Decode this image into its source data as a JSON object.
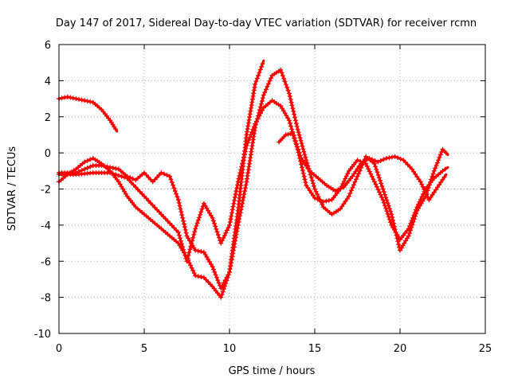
{
  "chart_data": {
    "type": "line",
    "title": "Day 147 of 2017, Sidereal Day-to-day VTEC variation (SDTVAR) for receiver rcmn",
    "xlabel": "GPS time / hours",
    "ylabel": "SDTVAR / TECUs",
    "xlim": [
      0,
      25
    ],
    "ylim": [
      -10,
      6
    ],
    "xticks": [
      "0",
      "5",
      "10",
      "15",
      "20",
      "25"
    ],
    "yticks": [
      "-10",
      "-8",
      "-6",
      "-4",
      "-2",
      "0",
      "2",
      "4",
      "6"
    ],
    "grid": true,
    "marker": "+",
    "color": "#ff0000",
    "series": [
      {
        "x": [
          0,
          0.5,
          1,
          1.5,
          2,
          2.5,
          3,
          3.4
        ],
        "y": [
          3.0,
          3.1,
          3.0,
          2.9,
          2.8,
          2.4,
          1.8,
          1.2
        ]
      },
      {
        "x": [
          0,
          0.5,
          1,
          1.5,
          2,
          2.5,
          3,
          3.5,
          4,
          4.5,
          5,
          5.5,
          6,
          6.5,
          7,
          7.5,
          8,
          8.5,
          9,
          9.5,
          10,
          10.5,
          11,
          11.5,
          12
        ],
        "y": [
          -1.6,
          -1.2,
          -0.9,
          -0.5,
          -0.3,
          -0.6,
          -1.0,
          -1.6,
          -2.4,
          -3.0,
          -3.4,
          -3.8,
          -4.2,
          -4.6,
          -5.0,
          -5.8,
          -6.8,
          -6.9,
          -7.4,
          -8.0,
          -6.6,
          -3.2,
          1.0,
          3.8,
          5.1
        ]
      },
      {
        "x": [
          0,
          0.5,
          1,
          1.5,
          2,
          2.5,
          3,
          3.5,
          4,
          4.5,
          5,
          5.5,
          6,
          6.5,
          7,
          7.5,
          8,
          8.5,
          9,
          9.5,
          10,
          10.5,
          11,
          11.5,
          12,
          12.5,
          13,
          13.5,
          14,
          14.5,
          15,
          15.5,
          16,
          16.5,
          17,
          17.5,
          18,
          18.5,
          19,
          19.5,
          20,
          20.5,
          21,
          21.5,
          22,
          22.5,
          22.8
        ],
        "y": [
          -1.1,
          -1.1,
          -1.1,
          -0.9,
          -0.7,
          -0.7,
          -0.8,
          -0.9,
          -1.3,
          -1.5,
          -1.1,
          -1.6,
          -1.1,
          -1.3,
          -2.6,
          -4.6,
          -5.4,
          -5.5,
          -6.3,
          -7.5,
          -6.6,
          -4.0,
          -1.6,
          1.4,
          3.2,
          4.3,
          4.6,
          3.3,
          1.3,
          -0.4,
          -2.0,
          -3.0,
          -3.4,
          -3.1,
          -2.4,
          -1.3,
          -0.2,
          -0.6,
          -2.0,
          -3.4,
          -5.4,
          -4.6,
          -3.2,
          -2.4,
          -1.0,
          0.2,
          -0.1
        ]
      },
      {
        "x": [
          0,
          1,
          2,
          3,
          4,
          5,
          6,
          7,
          7.5,
          8,
          8.5,
          9,
          9.5,
          10,
          10.5,
          11,
          11.5,
          12,
          12.5,
          13,
          13.5,
          14,
          14.5,
          15,
          15.5,
          16,
          16.5,
          17,
          17.5,
          18,
          18.5,
          19,
          19.5,
          20,
          20.5,
          21,
          21.5,
          22,
          22.5,
          22.8
        ],
        "y": [
          -1.2,
          -1.2,
          -1.1,
          -1.1,
          -1.4,
          -2.4,
          -3.4,
          -4.4,
          -6.0,
          -4.2,
          -2.8,
          -3.6,
          -5.0,
          -4.0,
          -1.6,
          0.4,
          1.6,
          2.5,
          2.9,
          2.6,
          1.8,
          0.2,
          -1.8,
          -2.5,
          -2.7,
          -2.6,
          -2.0,
          -1.0,
          -0.4,
          -0.6,
          -1.6,
          -2.6,
          -4.0,
          -4.8,
          -4.2,
          -3.0,
          -2.0,
          -1.4,
          -1.0,
          -0.8
        ]
      },
      {
        "x": [
          12.9,
          13.3,
          13.7,
          14.2,
          14.7,
          15.2,
          15.7,
          16.2,
          16.7,
          17.2,
          17.7,
          18.2,
          18.7,
          19.2,
          19.7,
          20.2,
          20.7,
          21.2,
          21.7,
          22.2,
          22.7
        ],
        "y": [
          0.6,
          1.0,
          1.1,
          -0.3,
          -1.0,
          -1.4,
          -1.8,
          -2.1,
          -1.9,
          -1.3,
          -0.6,
          -0.3,
          -0.5,
          -0.3,
          -0.2,
          -0.4,
          -0.9,
          -1.6,
          -2.6,
          -1.9,
          -1.2
        ]
      }
    ]
  }
}
